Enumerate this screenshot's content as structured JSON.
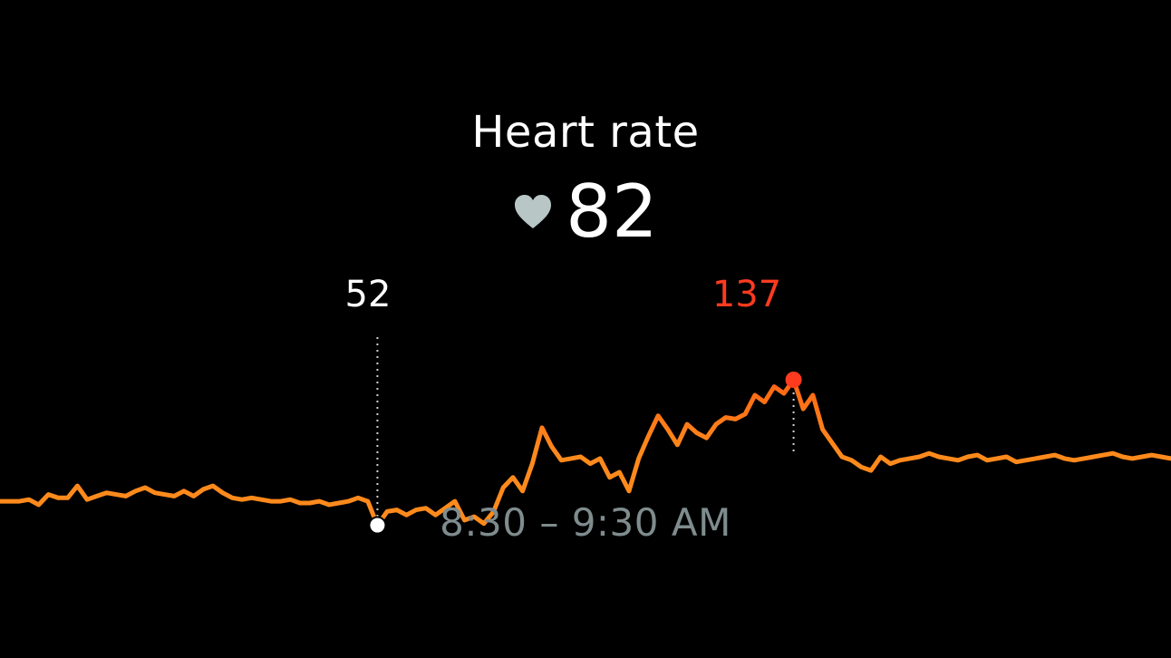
{
  "title": "Heart rate",
  "current": {
    "value": "82",
    "icon": "heart-icon"
  },
  "time_range": "8:30 – 9:30 AM",
  "colors": {
    "background": "#000000",
    "line_low": "#ff8a1c",
    "line_high": "#ff2a2a",
    "min_marker": "#ffffff",
    "max_marker": "#ff3b1f",
    "range_text": "#7f8c8d",
    "heart": "#b8c6c6"
  },
  "chart_data": {
    "type": "line",
    "title": "",
    "xlabel": "",
    "ylabel": "",
    "x_range": [
      "8:30",
      "9:30 AM"
    ],
    "min": {
      "label": "52",
      "value": 52,
      "x_index": 39
    },
    "max": {
      "label": "137",
      "value": 137,
      "x_index": 82
    },
    "ylim": [
      20,
      200
    ],
    "values": [
      66,
      66,
      66,
      67,
      64,
      70,
      68,
      68,
      75,
      67,
      69,
      71,
      70,
      69,
      72,
      74,
      71,
      70,
      69,
      72,
      69,
      73,
      75,
      71,
      68,
      67,
      68,
      67,
      66,
      66,
      67,
      65,
      65,
      66,
      64,
      65,
      66,
      68,
      66,
      52,
      60,
      61,
      58,
      61,
      62,
      58,
      62,
      66,
      55,
      57,
      53,
      60,
      74,
      80,
      72,
      88,
      109,
      98,
      90,
      91,
      92,
      88,
      91,
      80,
      83,
      72,
      91,
      104,
      116,
      108,
      99,
      111,
      106,
      103,
      111,
      115,
      114,
      117,
      128,
      124,
      133,
      129,
      137,
      120,
      128,
      108,
      100,
      92,
      90,
      86,
      84,
      92,
      88,
      90,
      91,
      92,
      94,
      92,
      91,
      90,
      92,
      93,
      90,
      91,
      92,
      89,
      90,
      91,
      92,
      93,
      91,
      90,
      91,
      92,
      93,
      94,
      92,
      91,
      92,
      93,
      92,
      91
    ]
  }
}
